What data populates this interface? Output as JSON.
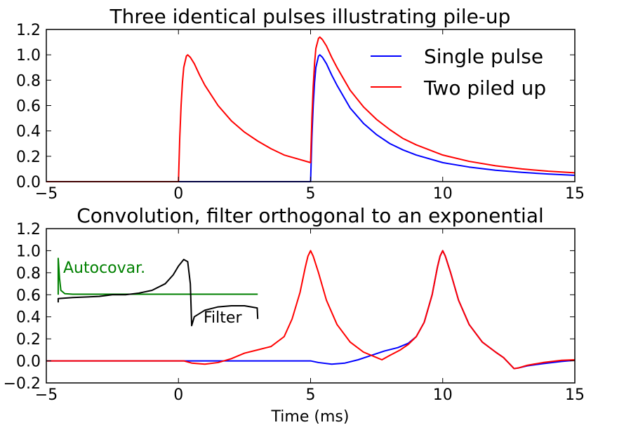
{
  "chart_data": [
    {
      "type": "line",
      "title": "Three identical pulses illustrating pile-up",
      "xlabel": "",
      "ylabel": "",
      "xlim": [
        -5,
        15
      ],
      "ylim": [
        0,
        1.2
      ],
      "xticks": [
        -5,
        0,
        5,
        10,
        15
      ],
      "xtick_labels": [
        "−5",
        "0",
        "5",
        "10",
        "15"
      ],
      "yticks": [
        0,
        0.2,
        0.4,
        0.6,
        0.8,
        1.0,
        1.2
      ],
      "ytick_labels": [
        "0.0",
        "0.2",
        "0.4",
        "0.6",
        "0.8",
        "1.0",
        "1.2"
      ],
      "grid": false,
      "legend_position": "top-right",
      "series": [
        {
          "name": "Single pulse",
          "color": "#0000ff",
          "points": [
            [
              -5,
              0
            ],
            [
              5,
              0
            ],
            [
              5.05,
              0.35
            ],
            [
              5.1,
              0.6
            ],
            [
              5.15,
              0.78
            ],
            [
              5.2,
              0.9
            ],
            [
              5.3,
              0.99
            ],
            [
              5.35,
              1.0
            ],
            [
              5.45,
              0.98
            ],
            [
              5.6,
              0.93
            ],
            [
              5.8,
              0.84
            ],
            [
              6.0,
              0.76
            ],
            [
              6.5,
              0.58
            ],
            [
              7.0,
              0.46
            ],
            [
              7.5,
              0.37
            ],
            [
              8.0,
              0.3
            ],
            [
              8.5,
              0.25
            ],
            [
              9.0,
              0.21
            ],
            [
              10.0,
              0.15
            ],
            [
              11.0,
              0.115
            ],
            [
              12.0,
              0.09
            ],
            [
              13.0,
              0.073
            ],
            [
              14.0,
              0.06
            ],
            [
              15.0,
              0.05
            ]
          ]
        },
        {
          "name": "Two piled up",
          "color": "#ff0000",
          "points": [
            [
              -5,
              0
            ],
            [
              0,
              0
            ],
            [
              0.05,
              0.35
            ],
            [
              0.1,
              0.6
            ],
            [
              0.15,
              0.78
            ],
            [
              0.2,
              0.9
            ],
            [
              0.3,
              0.99
            ],
            [
              0.35,
              1.0
            ],
            [
              0.45,
              0.98
            ],
            [
              0.6,
              0.93
            ],
            [
              0.8,
              0.84
            ],
            [
              1.0,
              0.76
            ],
            [
              1.5,
              0.6
            ],
            [
              2.0,
              0.48
            ],
            [
              2.5,
              0.39
            ],
            [
              3.0,
              0.32
            ],
            [
              3.5,
              0.26
            ],
            [
              4.0,
              0.21
            ],
            [
              4.5,
              0.18
            ],
            [
              5.0,
              0.15
            ],
            [
              5.05,
              0.5
            ],
            [
              5.1,
              0.75
            ],
            [
              5.15,
              0.93
            ],
            [
              5.2,
              1.05
            ],
            [
              5.3,
              1.13
            ],
            [
              5.35,
              1.14
            ],
            [
              5.45,
              1.12
            ],
            [
              5.6,
              1.07
            ],
            [
              5.8,
              0.98
            ],
            [
              6.0,
              0.9
            ],
            [
              6.5,
              0.72
            ],
            [
              7.0,
              0.59
            ],
            [
              7.5,
              0.49
            ],
            [
              8.0,
              0.41
            ],
            [
              8.5,
              0.34
            ],
            [
              9.0,
              0.29
            ],
            [
              10.0,
              0.21
            ],
            [
              11.0,
              0.16
            ],
            [
              12.0,
              0.125
            ],
            [
              13.0,
              0.1
            ],
            [
              14.0,
              0.082
            ],
            [
              15.0,
              0.07
            ]
          ]
        }
      ]
    },
    {
      "type": "line",
      "title": "Convolution, filter orthogonal to an exponential",
      "xlabel": "Time (ms)",
      "ylabel": "",
      "xlim": [
        -5,
        15
      ],
      "ylim": [
        -0.2,
        1.2
      ],
      "xticks": [
        -5,
        0,
        5,
        10,
        15
      ],
      "xtick_labels": [
        "−5",
        "0",
        "5",
        "10",
        "15"
      ],
      "yticks": [
        -0.2,
        0,
        0.2,
        0.4,
        0.6,
        0.8,
        1.0,
        1.2
      ],
      "ytick_labels": [
        "−0.2",
        "0.0",
        "0.2",
        "0.4",
        "0.6",
        "0.8",
        "1.0",
        "1.2"
      ],
      "grid": false,
      "series": [
        {
          "color": "#0000ff",
          "points": [
            [
              -5,
              0
            ],
            [
              5,
              0
            ],
            [
              5.3,
              -0.015
            ],
            [
              5.8,
              -0.03
            ],
            [
              6.3,
              -0.02
            ],
            [
              6.8,
              0.01
            ],
            [
              7.3,
              0.05
            ],
            [
              7.8,
              0.09
            ],
            [
              8.3,
              0.12
            ],
            [
              8.7,
              0.16
            ],
            [
              9.0,
              0.22
            ],
            [
              9.3,
              0.35
            ],
            [
              9.6,
              0.6
            ],
            [
              9.8,
              0.85
            ],
            [
              9.9,
              0.95
            ],
            [
              10.0,
              1.0
            ],
            [
              10.1,
              0.95
            ],
            [
              10.3,
              0.8
            ],
            [
              10.6,
              0.55
            ],
            [
              11.0,
              0.33
            ],
            [
              11.5,
              0.17
            ],
            [
              12.0,
              0.08
            ],
            [
              12.3,
              0.03
            ],
            [
              12.5,
              -0.02
            ],
            [
              12.7,
              -0.07
            ],
            [
              12.85,
              -0.065
            ],
            [
              13.2,
              -0.045
            ],
            [
              13.8,
              -0.025
            ],
            [
              14.5,
              -0.005
            ],
            [
              15,
              0.005
            ]
          ]
        },
        {
          "color": "#ff0000",
          "points": [
            [
              -5,
              0
            ],
            [
              0.2,
              0
            ],
            [
              0.5,
              -0.02
            ],
            [
              1.0,
              -0.03
            ],
            [
              1.5,
              -0.015
            ],
            [
              2.0,
              0.02
            ],
            [
              2.5,
              0.07
            ],
            [
              3.0,
              0.1
            ],
            [
              3.5,
              0.13
            ],
            [
              4.0,
              0.22
            ],
            [
              4.3,
              0.38
            ],
            [
              4.6,
              0.62
            ],
            [
              4.8,
              0.85
            ],
            [
              4.9,
              0.95
            ],
            [
              5.0,
              1.0
            ],
            [
              5.1,
              0.95
            ],
            [
              5.3,
              0.8
            ],
            [
              5.6,
              0.55
            ],
            [
              6.0,
              0.33
            ],
            [
              6.5,
              0.17
            ],
            [
              7.0,
              0.08
            ],
            [
              7.4,
              0.04
            ],
            [
              7.7,
              0.01
            ],
            [
              8.0,
              0.05
            ],
            [
              8.4,
              0.1
            ],
            [
              8.7,
              0.15
            ],
            [
              9.0,
              0.22
            ],
            [
              9.3,
              0.35
            ],
            [
              9.6,
              0.6
            ],
            [
              9.8,
              0.85
            ],
            [
              9.9,
              0.95
            ],
            [
              10.0,
              1.0
            ],
            [
              10.1,
              0.95
            ],
            [
              10.3,
              0.8
            ],
            [
              10.6,
              0.55
            ],
            [
              11.0,
              0.33
            ],
            [
              11.5,
              0.17
            ],
            [
              12.0,
              0.08
            ],
            [
              12.3,
              0.03
            ],
            [
              12.5,
              -0.02
            ],
            [
              12.7,
              -0.07
            ],
            [
              12.85,
              -0.065
            ],
            [
              13.2,
              -0.04
            ],
            [
              13.8,
              -0.015
            ],
            [
              14.5,
              0.005
            ],
            [
              15,
              0.01
            ]
          ]
        }
      ],
      "inset": {
        "series": [
          {
            "label": "Autocovar.",
            "color": "#008000",
            "points": [
              [
                -4.55,
                0.6
              ],
              [
                -4.55,
                0.93
              ],
              [
                -4.5,
                0.75
              ],
              [
                -4.45,
                0.64
              ],
              [
                -4.3,
                0.61
              ],
              [
                -4.0,
                0.605
              ],
              [
                3.0,
                0.605
              ]
            ]
          },
          {
            "label": "Filter",
            "color": "#000000",
            "points": [
              [
                -4.55,
                0.53
              ],
              [
                -4.55,
                0.565
              ],
              [
                -4.0,
                0.575
              ],
              [
                -3.0,
                0.585
              ],
              [
                -2.5,
                0.6
              ],
              [
                -2.0,
                0.6
              ],
              [
                -1.5,
                0.615
              ],
              [
                -1.0,
                0.64
              ],
              [
                -0.5,
                0.7
              ],
              [
                -0.2,
                0.78
              ],
              [
                0.0,
                0.86
              ],
              [
                0.2,
                0.92
              ],
              [
                0.35,
                0.9
              ],
              [
                0.45,
                0.7
              ],
              [
                0.5,
                0.32
              ],
              [
                0.6,
                0.4
              ],
              [
                1.0,
                0.46
              ],
              [
                1.5,
                0.49
              ],
              [
                2.0,
                0.5
              ],
              [
                2.5,
                0.5
              ],
              [
                2.98,
                0.48
              ],
              [
                3.0,
                0.38
              ]
            ]
          }
        ]
      }
    }
  ]
}
